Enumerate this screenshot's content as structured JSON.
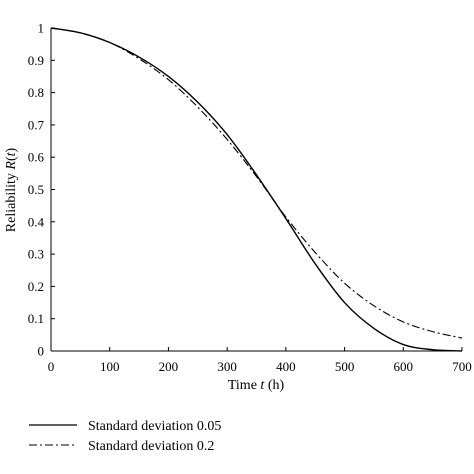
{
  "chart_data": {
    "type": "line",
    "title": "",
    "xlabel_pre": "Time ",
    "xlabel_var": "t",
    "xlabel_post": " (h)",
    "ylabel_pre": "Reliability ",
    "ylabel_var": "R",
    "ylabel_mid": "(",
    "ylabel_var2": "t",
    "ylabel_post": ")",
    "xlim": [
      0,
      700
    ],
    "ylim": [
      0,
      1
    ],
    "xticks": [
      "0",
      "100",
      "200",
      "300",
      "400",
      "500",
      "600",
      "700"
    ],
    "yticks": [
      "0",
      "0.1",
      "0.2",
      "0.3",
      "0.4",
      "0.5",
      "0.6",
      "0.7",
      "0.8",
      "0.9",
      "1"
    ],
    "grid": false,
    "legend_position": "below",
    "series": [
      {
        "name": "Standard deviation 0.05",
        "style": "solid",
        "x": [
          0,
          50,
          100,
          150,
          200,
          250,
          300,
          350,
          400,
          450,
          500,
          550,
          600,
          650,
          700
        ],
        "y": [
          1.0,
          0.985,
          0.955,
          0.91,
          0.85,
          0.77,
          0.67,
          0.545,
          0.41,
          0.27,
          0.15,
          0.07,
          0.02,
          0.004,
          0.0
        ]
      },
      {
        "name": "Standard deviation 0.2",
        "style": "dash-dot",
        "x": [
          0,
          50,
          100,
          150,
          200,
          250,
          300,
          350,
          400,
          450,
          500,
          550,
          600,
          650,
          700
        ],
        "y": [
          1.0,
          0.985,
          0.955,
          0.905,
          0.84,
          0.755,
          0.655,
          0.54,
          0.415,
          0.305,
          0.21,
          0.14,
          0.09,
          0.06,
          0.04
        ]
      }
    ]
  }
}
